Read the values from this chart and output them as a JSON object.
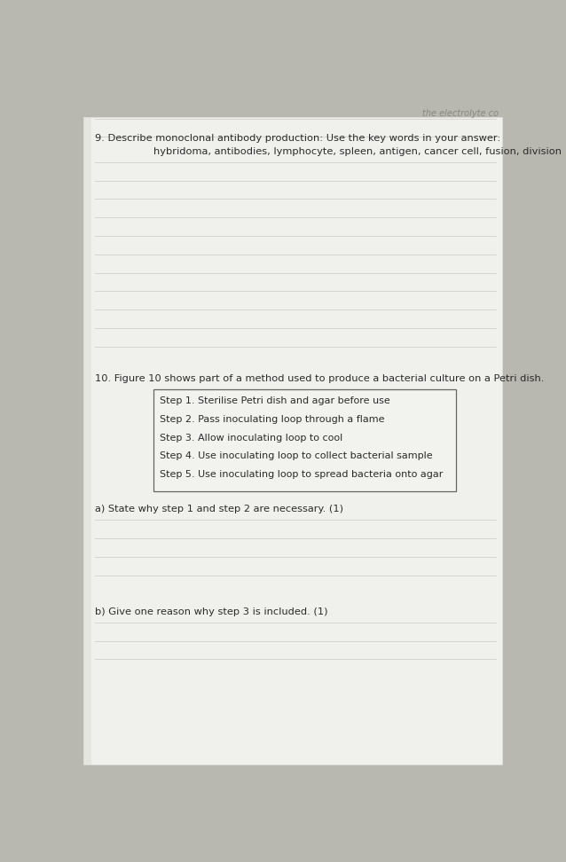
{
  "background_color": "#b8b8b0",
  "page_color": "#f0f0ec",
  "top_right_text": "the electrolyte co",
  "q9_label": "9. Describe monoclonal antibody production: Use the key words in your answer:",
  "q9_keywords": "hybridoma, antibodies, lymphocyte, spleen, antigen, cancer cell, fusion, division",
  "lines_q9": 11,
  "q10_label": "10. Figure 10 shows part of a method used to produce a bacterial culture on a Petri dish.",
  "box_steps": [
    "Step 1. Sterilise Petri dish and agar before use",
    "Step 2. Pass inoculating loop through a flame",
    "Step 3. Allow inoculating loop to cool",
    "Step 4. Use inoculating loop to collect bacterial sample",
    "Step 5. Use inoculating loop to spread bacteria onto agar"
  ],
  "qa_label": "a) State why step 1 and step 2 are necessary. (1)",
  "lines_qa": 4,
  "qb_label": "b) Give one reason why step 3 is included. (1)",
  "lines_qb": 3,
  "text_color": "#2a2a2a",
  "line_color": "#c0c0b8",
  "box_border_color": "#666660",
  "box_bg_color": "#f2f2ee"
}
